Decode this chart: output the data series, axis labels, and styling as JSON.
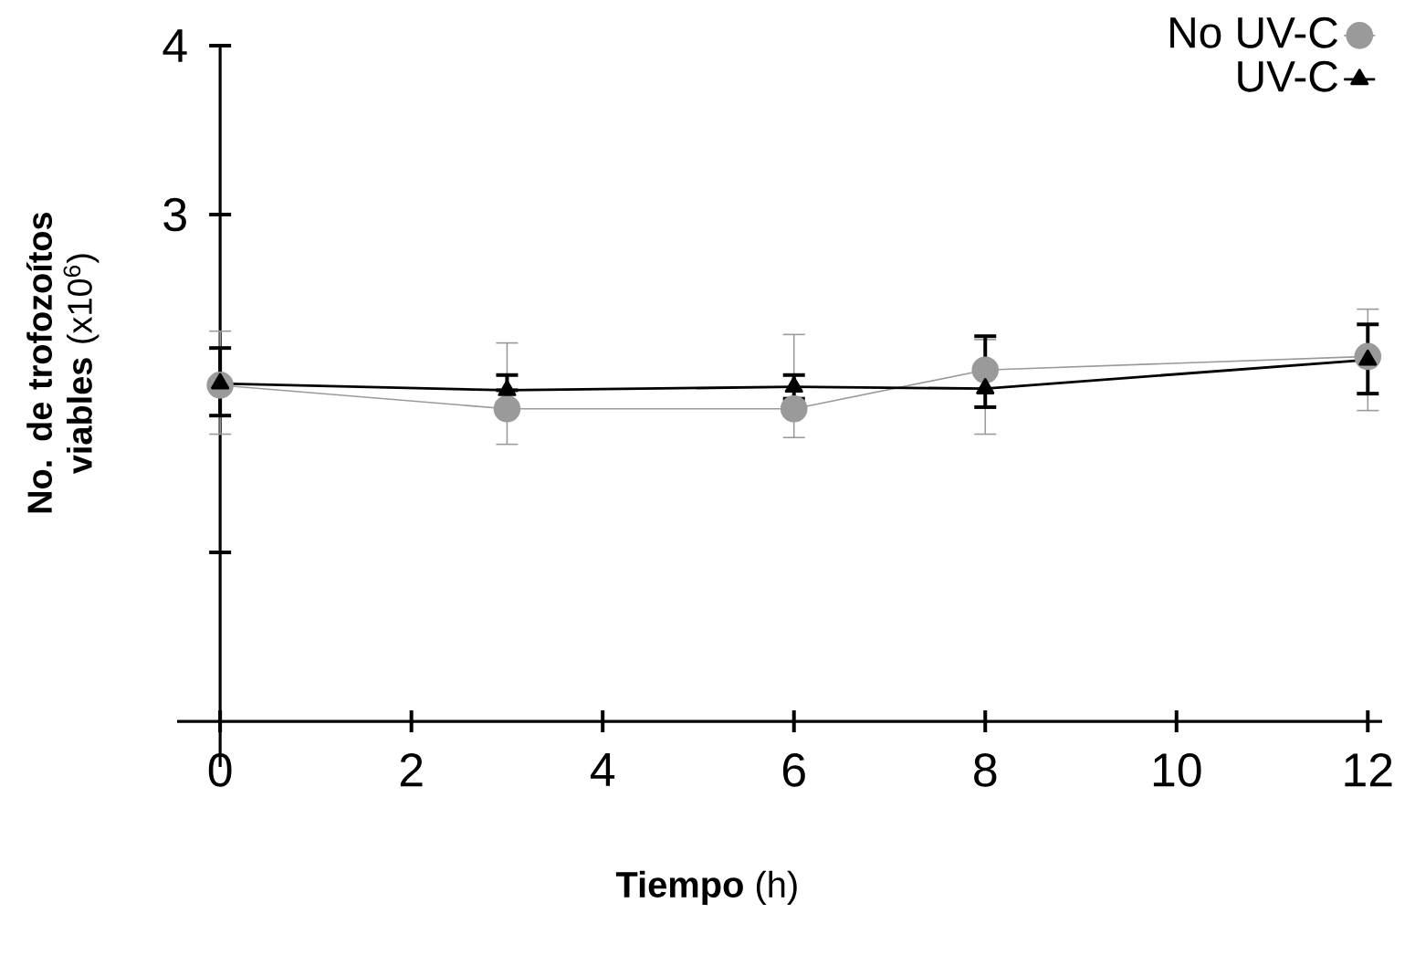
{
  "chart_data": {
    "type": "line",
    "xlabel": "**Tiempo** (h)",
    "ylabel": "**No. de trofozoítos viables** (x10$^{6}$)",
    "x": [
      0,
      3,
      6,
      8,
      12
    ],
    "series": [
      {
        "name": "No UV-C",
        "color": "#9a9a9a",
        "marker": "circle",
        "values": [
          1.99,
          1.85,
          1.85,
          2.08,
          2.16
        ],
        "errors": [
          [
            1.7,
            2.31
          ],
          [
            1.64,
            2.24
          ],
          [
            1.68,
            2.29
          ],
          [
            1.7,
            2.26
          ],
          [
            1.84,
            2.44
          ]
        ]
      },
      {
        "name": "UV-C",
        "color": "#000000",
        "marker": "triangle",
        "values": [
          2.0,
          1.96,
          1.98,
          1.97,
          2.14
        ],
        "errors": [
          [
            1.81,
            2.21
          ],
          [
            1.96,
            2.05
          ],
          [
            1.91,
            2.05
          ],
          [
            1.86,
            2.28
          ],
          [
            1.94,
            2.35
          ]
        ]
      }
    ],
    "xlim": [
      -0.45,
      12.15
    ],
    "ylim": [
      -0.27,
      4
    ],
    "xticks": [
      0,
      2,
      4,
      6,
      8,
      10,
      12
    ],
    "yticks": [
      {
        "value": 1,
        "label": null
      },
      3,
      4
    ],
    "legend": "top right",
    "grid": false
  }
}
